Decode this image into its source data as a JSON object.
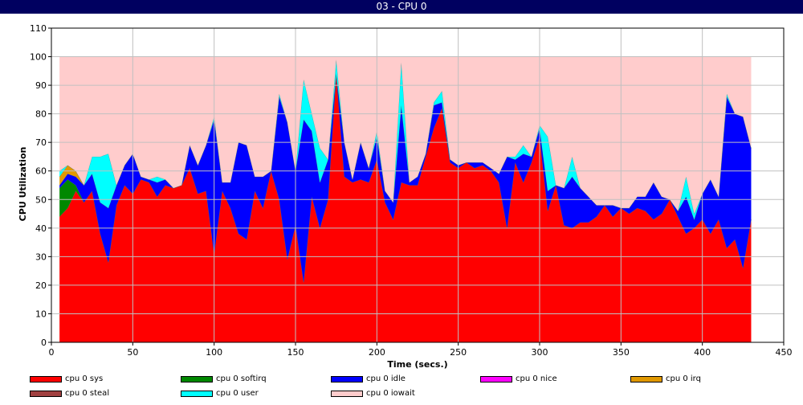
{
  "window": {
    "title": "03 - CPU 0"
  },
  "chart_data": {
    "type": "area",
    "stacked": true,
    "xlabel": "Time (secs.)",
    "ylabel": "CPU Utilization",
    "xlim": [
      0,
      450
    ],
    "ylim": [
      0,
      110
    ],
    "xticks": [
      0,
      50,
      100,
      150,
      200,
      250,
      300,
      350,
      400,
      450
    ],
    "yticks": [
      0,
      10,
      20,
      30,
      40,
      50,
      60,
      70,
      80,
      90,
      100,
      110
    ],
    "grid": true,
    "legend_position": "bottom",
    "x": [
      5,
      10,
      15,
      20,
      25,
      30,
      35,
      40,
      45,
      50,
      55,
      60,
      65,
      70,
      75,
      80,
      85,
      90,
      95,
      100,
      105,
      110,
      115,
      120,
      125,
      130,
      135,
      140,
      145,
      150,
      155,
      160,
      165,
      170,
      175,
      180,
      185,
      190,
      195,
      200,
      205,
      210,
      215,
      220,
      225,
      230,
      235,
      240,
      245,
      250,
      255,
      260,
      265,
      270,
      275,
      280,
      285,
      290,
      295,
      300,
      305,
      310,
      315,
      320,
      325,
      330,
      335,
      340,
      345,
      350,
      355,
      360,
      365,
      370,
      375,
      380,
      385,
      390,
      395,
      400,
      405,
      410,
      415,
      420,
      425,
      430
    ],
    "series": [
      {
        "name": "cpu 0 sys",
        "color": "#ff0000",
        "values": [
          44,
          47,
          53,
          49,
          53,
          38,
          28,
          48,
          55,
          52,
          57,
          56,
          51,
          55,
          54,
          55,
          61,
          52,
          53,
          31,
          53,
          47,
          38,
          36,
          53,
          47,
          60,
          50,
          29,
          41,
          21,
          51,
          40,
          50,
          94,
          58,
          56,
          57,
          56,
          64,
          49,
          43,
          56,
          55,
          55,
          65,
          75,
          82,
          63,
          61,
          63,
          61,
          62,
          60,
          56,
          40,
          63,
          56,
          63,
          72,
          46,
          55,
          41,
          40,
          42,
          42,
          44,
          48,
          44,
          47,
          45,
          47,
          46,
          43,
          45,
          50,
          44,
          38,
          40,
          43,
          38,
          43,
          33,
          36,
          26,
          43
        ]
      },
      {
        "name": "cpu 0 softirq",
        "color": "#008800",
        "values": [
          10,
          10,
          2,
          0,
          0,
          0,
          0,
          0,
          0,
          0,
          0,
          0,
          0,
          0,
          0,
          0,
          0,
          0,
          0,
          0,
          0,
          0,
          0,
          0,
          0,
          0,
          0,
          0,
          0,
          0,
          0,
          0,
          0,
          0,
          0,
          0,
          0,
          0,
          0,
          0,
          0,
          0,
          0,
          0,
          0,
          0,
          0,
          0,
          0,
          0,
          0,
          0,
          0,
          0,
          0,
          0,
          0,
          0,
          0,
          0,
          0,
          0,
          0,
          0,
          0,
          0,
          0,
          0,
          0,
          0,
          0,
          0,
          0,
          0,
          0,
          0,
          0,
          0,
          0,
          0,
          0,
          0,
          0,
          0,
          0,
          0
        ]
      },
      {
        "name": "cpu 0 idle",
        "color": "#0000ff",
        "values": [
          1,
          2,
          3,
          6,
          6,
          11,
          19,
          7,
          7,
          14,
          1,
          1,
          5,
          2,
          0,
          0,
          8,
          10,
          16,
          47,
          3,
          9,
          32,
          33,
          5,
          11,
          0,
          36,
          48,
          19,
          57,
          23,
          16,
          14,
          0,
          12,
          1,
          13,
          5,
          8,
          4,
          6,
          27,
          1,
          3,
          1,
          8,
          2,
          1,
          1,
          0,
          2,
          1,
          1,
          3,
          25,
          1,
          10,
          2,
          3,
          7,
          0,
          13,
          18,
          12,
          9,
          4,
          0,
          4,
          0,
          2,
          4,
          5,
          13,
          6,
          0,
          2,
          13,
          3,
          9,
          19,
          8,
          53,
          44,
          53,
          25
        ]
      },
      {
        "name": "cpu 0 nice",
        "color": "#ff00ff",
        "values": [
          0,
          0,
          0,
          0,
          0,
          0,
          0,
          0,
          0,
          0,
          0,
          0,
          0,
          0,
          0,
          0,
          0,
          0,
          0,
          0,
          0,
          0,
          0,
          0,
          0,
          0,
          0,
          0,
          0,
          0,
          0,
          0,
          0,
          0,
          0,
          0,
          0,
          0,
          0,
          0,
          0,
          0,
          0,
          0,
          0,
          0,
          0,
          0,
          0,
          0,
          0,
          0,
          0,
          0,
          0,
          0,
          0,
          0,
          0,
          0,
          0,
          0,
          0,
          0,
          0,
          0,
          0,
          0,
          0,
          0,
          0,
          0,
          0,
          0,
          0,
          0,
          0,
          0,
          0,
          0,
          0,
          0,
          0,
          0,
          0,
          0
        ]
      },
      {
        "name": "cpu 0 irq",
        "color": "#e09800",
        "values": [
          3,
          3,
          2,
          0,
          0,
          0,
          0,
          0,
          0,
          0,
          0,
          0,
          0,
          0,
          0,
          0,
          0,
          0,
          0,
          0,
          0,
          0,
          0,
          0,
          0,
          0,
          0,
          0,
          0,
          0,
          0,
          0,
          0,
          0,
          0,
          0,
          0,
          0,
          0,
          0,
          0,
          0,
          0,
          0,
          0,
          0,
          0,
          0,
          0,
          0,
          0,
          0,
          0,
          0,
          0,
          0,
          0,
          0,
          0,
          0,
          0,
          0,
          0,
          0,
          0,
          0,
          0,
          0,
          0,
          0,
          0,
          0,
          0,
          0,
          0,
          0,
          0,
          0,
          0,
          0,
          0,
          0,
          0,
          0,
          0,
          0
        ]
      },
      {
        "name": "cpu 0 steal",
        "color": "#a04040",
        "values": [
          0,
          0,
          0,
          0,
          0,
          0,
          0,
          0,
          0,
          0,
          0,
          0,
          0,
          0,
          0,
          0,
          0,
          0,
          0,
          0,
          0,
          0,
          0,
          0,
          0,
          0,
          0,
          0,
          0,
          0,
          0,
          0,
          0,
          0,
          0,
          0,
          0,
          0,
          0,
          0,
          0,
          0,
          0,
          0,
          0,
          0,
          0,
          0,
          0,
          0,
          0,
          0,
          0,
          0,
          0,
          0,
          0,
          0,
          0,
          0,
          0,
          0,
          0,
          0,
          0,
          0,
          0,
          0,
          0,
          0,
          0,
          0,
          0,
          0,
          0,
          0,
          0,
          0,
          0,
          0,
          0,
          0,
          0,
          0,
          0,
          0
        ]
      },
      {
        "name": "cpu 0 user",
        "color": "#00ffff",
        "values": [
          2,
          0,
          0,
          0,
          6,
          16,
          19,
          0,
          0,
          0,
          0,
          0,
          2,
          0,
          0,
          0,
          0,
          0,
          0,
          1,
          0,
          0,
          0,
          0,
          0,
          0,
          0,
          1,
          0,
          0,
          14,
          6,
          12,
          0,
          5,
          0,
          0,
          0,
          0,
          2,
          0,
          0,
          15,
          0,
          0,
          0,
          1,
          4,
          0,
          0,
          0,
          0,
          0,
          0,
          0,
          0,
          1,
          3,
          0,
          1,
          19,
          0,
          0,
          7,
          0,
          0,
          0,
          0,
          0,
          0,
          0,
          0,
          0,
          0,
          0,
          0,
          0,
          7,
          2,
          0,
          0,
          0,
          1,
          0,
          0,
          0
        ]
      },
      {
        "name": "cpu 0 iowait",
        "color": "#ffcccc",
        "values": [
          40,
          38,
          40,
          45,
          35,
          35,
          34,
          45,
          38,
          34,
          42,
          43,
          42,
          43,
          46,
          45,
          31,
          38,
          31,
          21,
          44,
          44,
          30,
          31,
          42,
          42,
          40,
          13,
          23,
          40,
          8,
          20,
          32,
          36,
          1,
          30,
          43,
          30,
          39,
          26,
          47,
          51,
          2,
          44,
          42,
          34,
          16,
          12,
          36,
          38,
          37,
          37,
          37,
          39,
          41,
          35,
          35,
          31,
          35,
          24,
          28,
          45,
          46,
          35,
          46,
          49,
          52,
          52,
          52,
          53,
          53,
          49,
          49,
          44,
          49,
          50,
          54,
          42,
          55,
          48,
          43,
          49,
          13,
          20,
          21,
          32
        ]
      }
    ]
  },
  "legend": [
    {
      "label": "cpu 0 sys",
      "color": "#ff0000"
    },
    {
      "label": "cpu 0 softirq",
      "color": "#008800"
    },
    {
      "label": "cpu 0 idle",
      "color": "#0000ff"
    },
    {
      "label": "cpu 0 nice",
      "color": "#ff00ff"
    },
    {
      "label": "cpu 0 irq",
      "color": "#e09800"
    },
    {
      "label": "cpu 0 steal",
      "color": "#a04040"
    },
    {
      "label": "cpu 0 user",
      "color": "#00ffff"
    },
    {
      "label": "cpu 0 iowait",
      "color": "#ffcccc"
    }
  ]
}
